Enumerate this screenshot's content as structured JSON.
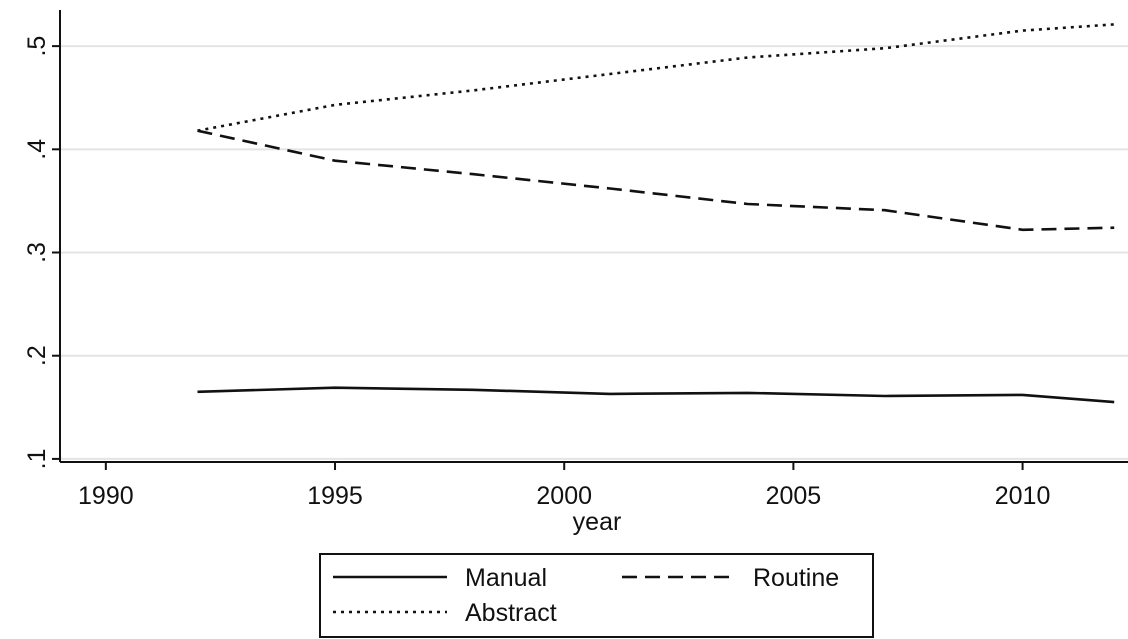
{
  "chart_data": {
    "type": "line",
    "title": "",
    "xlabel": "year",
    "ylabel": "",
    "xlim": [
      1989,
      2012.3
    ],
    "ylim": [
      0.097,
      0.535
    ],
    "x_ticks": [
      1990,
      1995,
      2000,
      2005,
      2010
    ],
    "x_tick_labels": [
      "1990",
      "1995",
      "2000",
      "2005",
      "2010"
    ],
    "y_ticks": [
      0.1,
      0.2,
      0.3,
      0.4,
      0.5
    ],
    "y_tick_labels": [
      ".1",
      ".2",
      ".3",
      ".4",
      ".5"
    ],
    "grid": true,
    "legend_position": "bottom",
    "series": [
      {
        "name": "Manual",
        "style": "solid",
        "color": "#111111",
        "x": [
          1992,
          1995,
          1998,
          2001,
          2004,
          2007,
          2010,
          2012
        ],
        "y": [
          0.165,
          0.169,
          0.167,
          0.163,
          0.164,
          0.161,
          0.162,
          0.155
        ]
      },
      {
        "name": "Routine",
        "style": "dashed",
        "color": "#111111",
        "x": [
          1992,
          1995,
          1998,
          2001,
          2004,
          2007,
          2010,
          2012
        ],
        "y": [
          0.418,
          0.389,
          0.376,
          0.362,
          0.347,
          0.341,
          0.322,
          0.324
        ]
      },
      {
        "name": "Abstract",
        "style": "dotted",
        "color": "#111111",
        "x": [
          1992,
          1995,
          1998,
          2001,
          2004,
          2007,
          2010,
          2012
        ],
        "y": [
          0.418,
          0.443,
          0.457,
          0.473,
          0.489,
          0.498,
          0.515,
          0.521
        ]
      }
    ]
  }
}
